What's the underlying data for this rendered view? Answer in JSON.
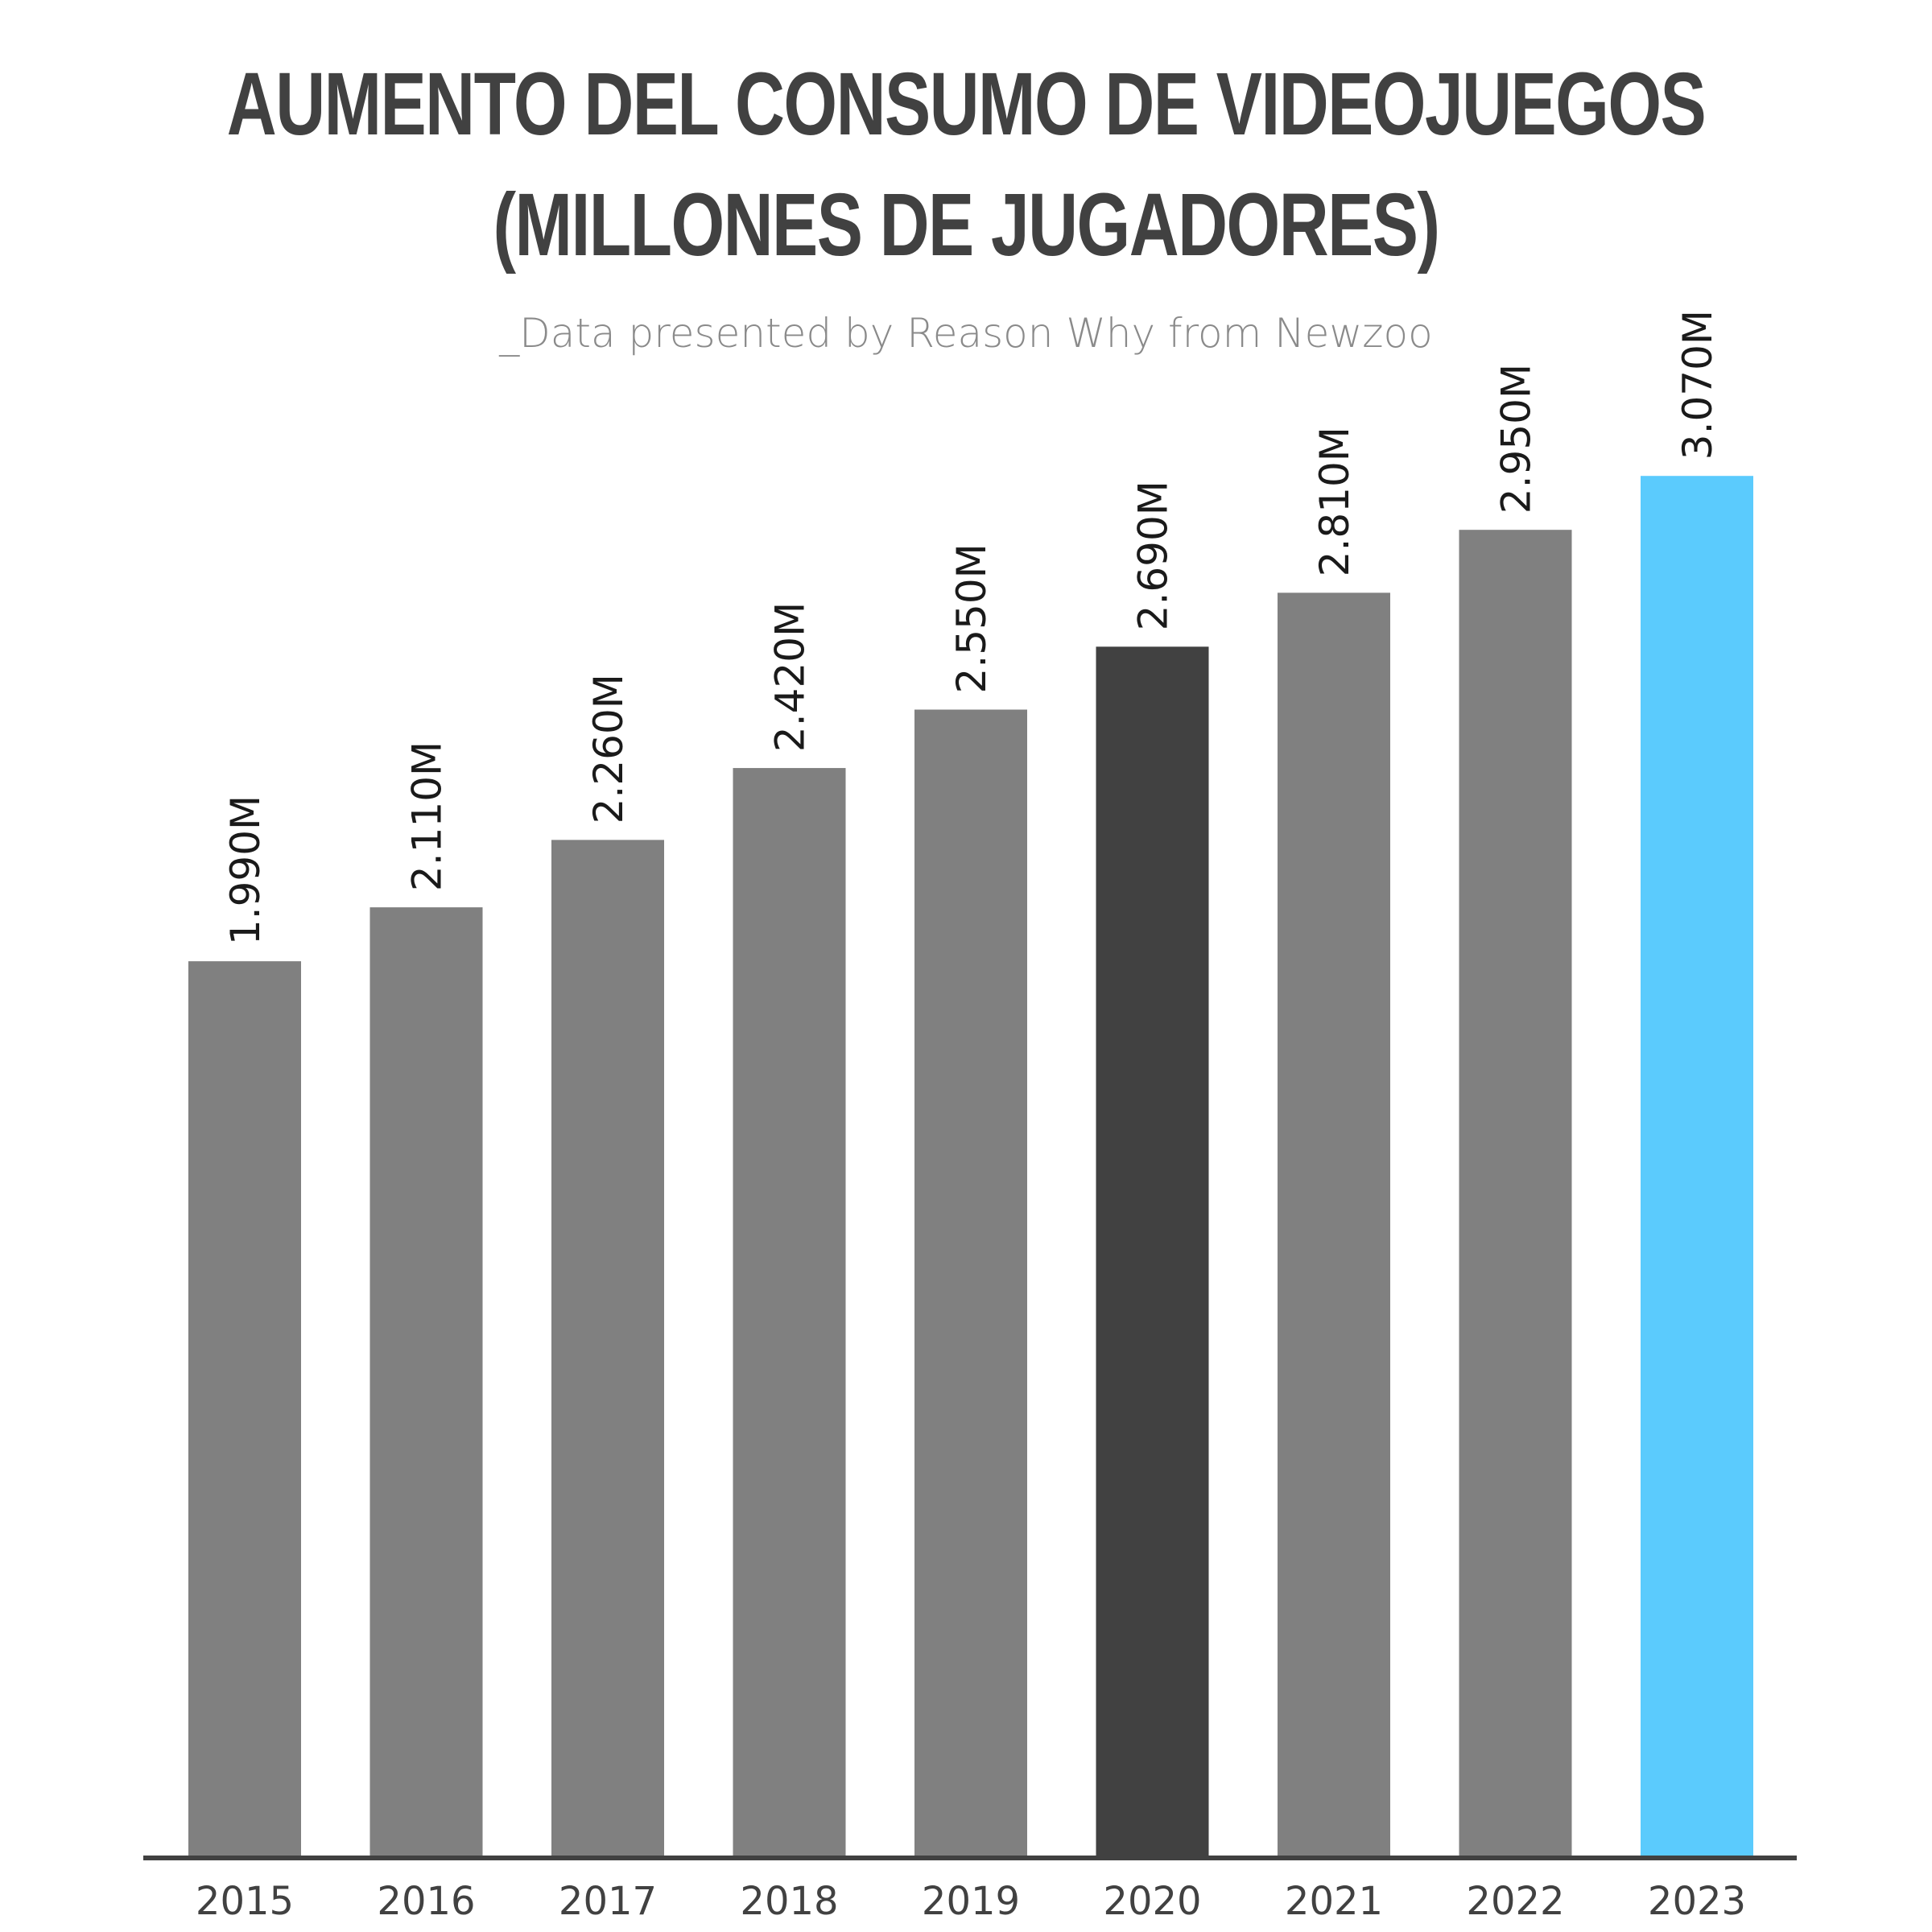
{
  "colors": {
    "default_bar": "#808080",
    "highlight_dark": "#414141",
    "highlight_accent": "#5bcbfd",
    "axis": "#414141",
    "title": "#414141",
    "subtitle": "#8a8a8a",
    "label": "#1a1a1a",
    "tick": "#414141"
  },
  "chart_data": {
    "type": "bar",
    "title": [
      "AUMENTO DEL CONSUMO DE VIDEOJUEGOS",
      "(MILLONES DE JUGADORES)"
    ],
    "subtitle": "_Data presented by Reason Why from Newzoo",
    "xlabel": "",
    "ylabel": "",
    "grid": false,
    "legend": "none",
    "ylim": [
      0,
      3520
    ],
    "categories": [
      "2015",
      "2016",
      "2017",
      "2018",
      "2019",
      "2020",
      "2021",
      "2022",
      "2023"
    ],
    "values": [
      1990,
      2110,
      2260,
      2420,
      2550,
      2690,
      2810,
      2950,
      3070
    ],
    "data_labels": [
      "1.990M",
      "2.110M",
      "2.260M",
      "2.420M",
      "2.550M",
      "2.690M",
      "2.810M",
      "2.950M",
      "3.070M"
    ],
    "bar_colors": [
      "#808080",
      "#808080",
      "#808080",
      "#808080",
      "#808080",
      "#414141",
      "#808080",
      "#808080",
      "#5bcbfd"
    ]
  }
}
